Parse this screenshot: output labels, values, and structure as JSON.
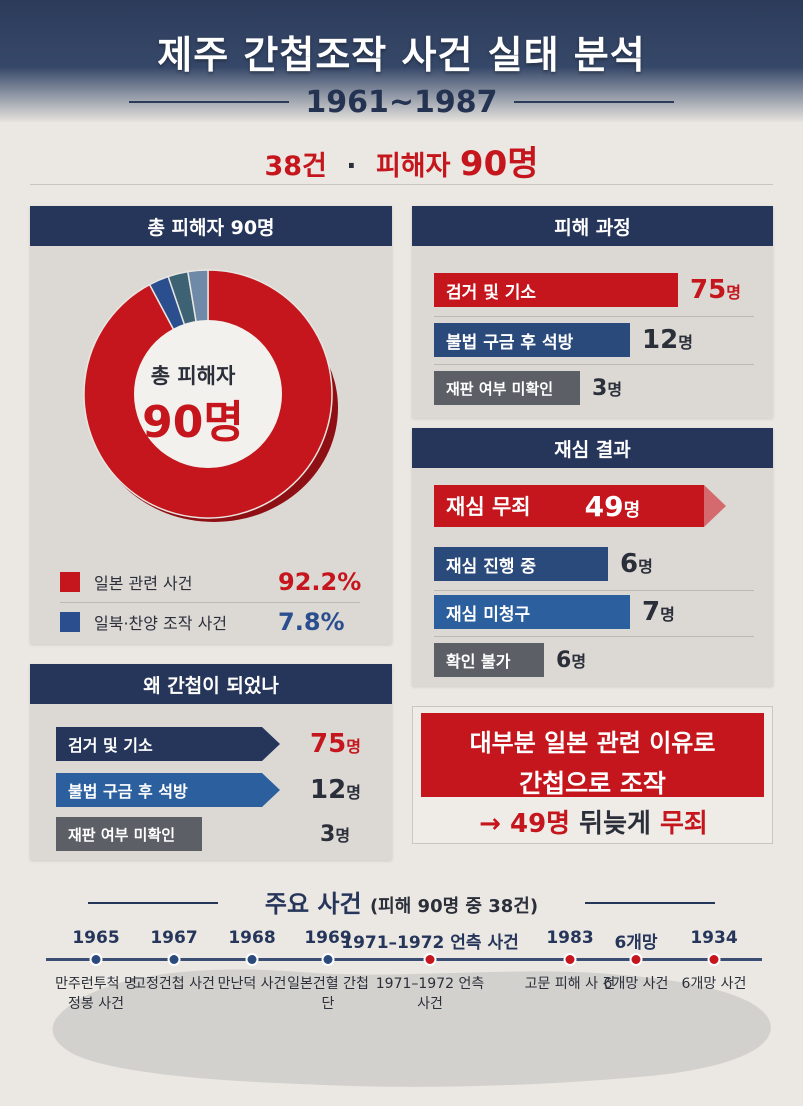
{
  "header": {
    "title": "제주 간첩조작 사건 실태 분석",
    "years": "1961~1987",
    "count_cases": "38건",
    "separator": "·",
    "victims_label": "피해자",
    "victims_value": "90명"
  },
  "donut_panel": {
    "heading": "총 피해자 90명",
    "center_label": "총 피해자",
    "center_value": "90명",
    "segments": [
      {
        "name": "일본 관련 사건",
        "percent": 92.2,
        "color": "#c4161c"
      },
      {
        "name": "일북·찬양 조작 사건",
        "percent": 7.8,
        "color": "#2b4f8e"
      }
    ],
    "legend": [
      {
        "label": "일본 관련 사건",
        "value": "92.2%",
        "color": "#c4161c"
      },
      {
        "label": "일북·찬양 조작 사건",
        "value": "7.8%",
        "color": "#2b4f8e"
      }
    ]
  },
  "process_panel": {
    "heading": "피해 과정",
    "rows": [
      {
        "label": "검거 및 기소",
        "value": "75",
        "unit": "명",
        "color": "#c4161c"
      },
      {
        "label": "불법 구금 후 석방",
        "value": "12",
        "unit": "명",
        "color": "#2b4a7c"
      },
      {
        "label": "재판 여부 미확인",
        "value": "3",
        "unit": "명",
        "color": "#5c5f66"
      }
    ]
  },
  "retrial_panel": {
    "heading": "재심 결과",
    "rows": [
      {
        "label": "재심 무죄",
        "value": "49",
        "unit": "명",
        "color": "#c4161c"
      },
      {
        "label": "재심 진행 중",
        "value": "6",
        "unit": "명",
        "color": "#2b4a7c"
      },
      {
        "label": "재심 미청구",
        "value": "7",
        "unit": "명",
        "color": "#2b5f9e"
      },
      {
        "label": "확인 불가",
        "value": "6",
        "unit": "명",
        "color": "#5c5f66"
      }
    ]
  },
  "why_panel": {
    "heading": "왜 간첩이 되었나",
    "rows": [
      {
        "label": "검거 및 기소",
        "value": "75",
        "unit": "명",
        "color": "#26355a"
      },
      {
        "label": "불법 구금 후 석방",
        "value": "12",
        "unit": "명",
        "color": "#2b5f9e"
      },
      {
        "label": "재판 여부 미확인",
        "value": "3",
        "unit": "명",
        "color": "#5c5f66"
      }
    ]
  },
  "callout": {
    "line1": "대부분 일본 관련 이유로",
    "line2": "간첩으로 조작",
    "arrow": "→",
    "bottom_count": "49명",
    "bottom_mid": "뒤늦게",
    "bottom_end": "무죄"
  },
  "timeline": {
    "title": "주요 사건",
    "subtitle": "(피해 90명 중 38건)",
    "events": [
      {
        "year": "1965",
        "label": "만주런투척 명정봉 사건",
        "color": "#2b4a7c"
      },
      {
        "year": "1967",
        "label": "고정건첩 사건",
        "color": "#2b4a7c"
      },
      {
        "year": "1968",
        "label": "만난덕 사건",
        "color": "#2b4a7c"
      },
      {
        "year": "1969",
        "label": "일본건혈 간첩단",
        "color": "#2b4a7c"
      },
      {
        "year": "1971–1972 언측 사건",
        "label": "1971–1972 언측사건",
        "color": "#c4161c"
      },
      {
        "year": "1983",
        "label": "고문 피해 사 건",
        "color": "#c4161c"
      },
      {
        "year": "6개망",
        "label": "6개망 사건",
        "color": "#c4161c"
      },
      {
        "year": "1934",
        "label": "6개망 사건",
        "color": "#c4161c"
      }
    ]
  }
}
